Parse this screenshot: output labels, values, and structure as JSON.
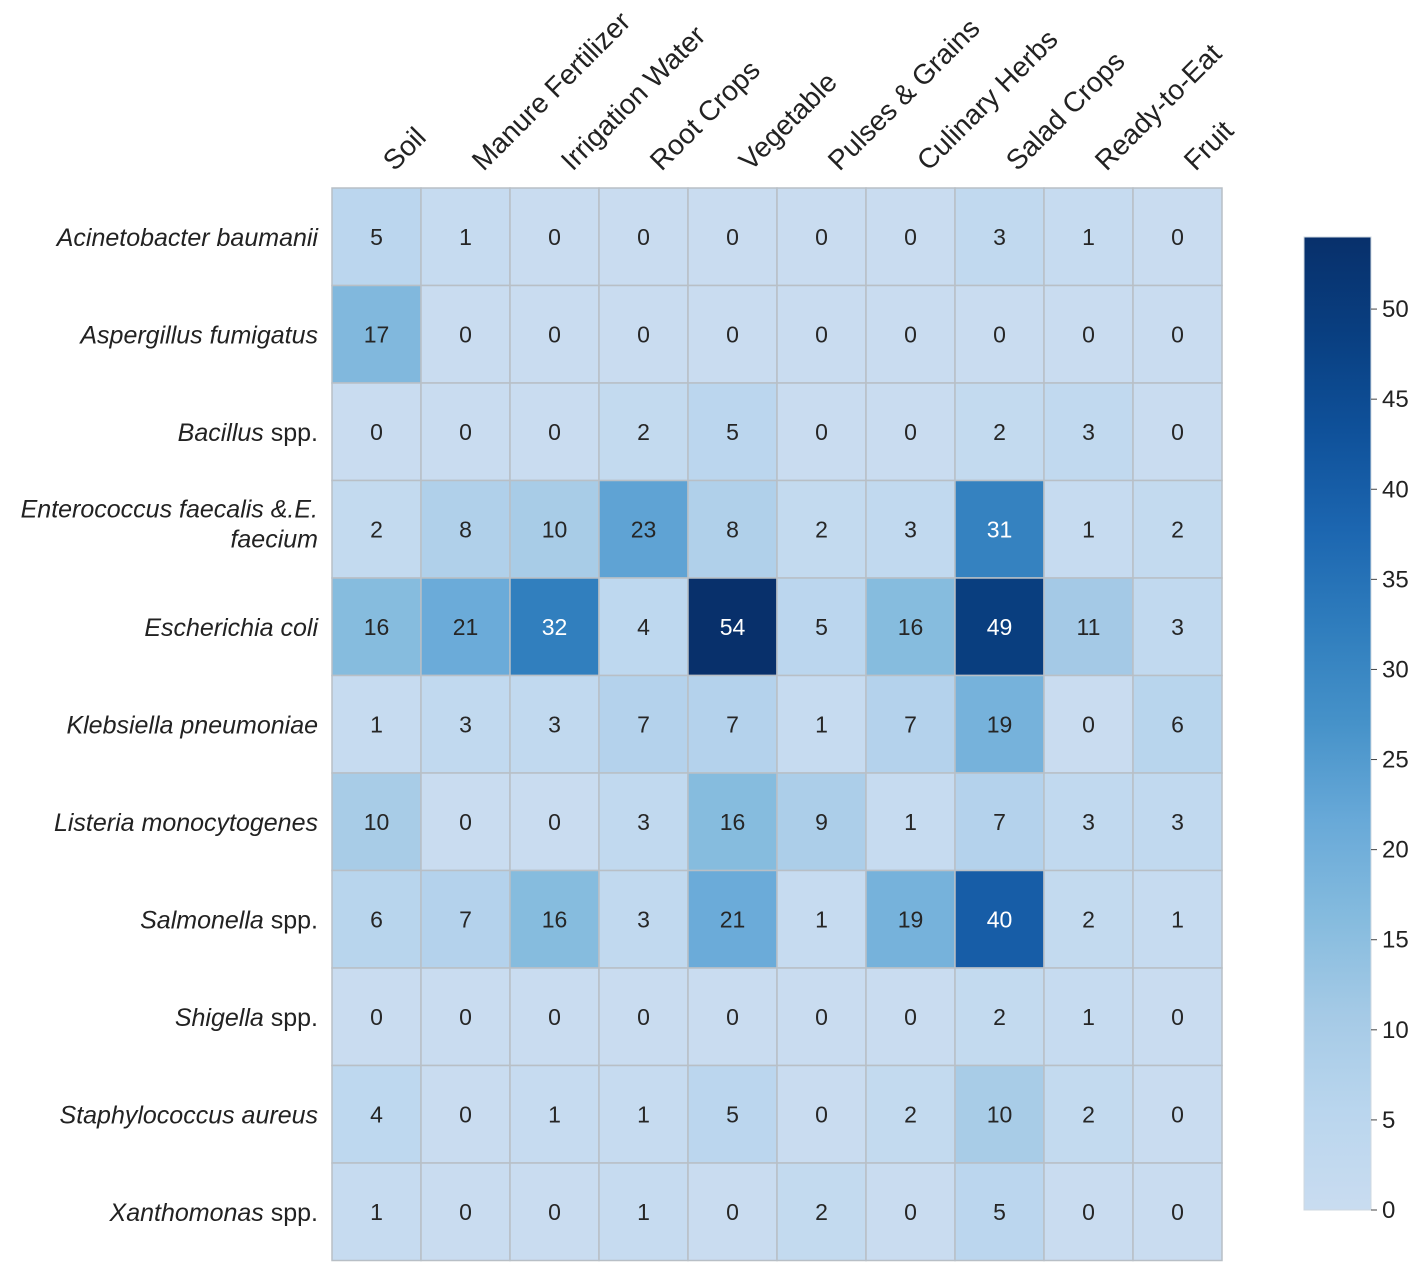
{
  "chart_data": {
    "type": "heatmap",
    "title": "",
    "xlabel": "",
    "ylabel": "",
    "columns": [
      "Soil",
      "Manure Fertilizer",
      "Irrigation Water",
      "Root Crops",
      "Vegetable",
      "Pulses & Grains",
      "Culinary Herbs",
      "Salad Crops",
      "Ready-to-Eat",
      "Fruit"
    ],
    "rows": [
      {
        "label": "Acinetobacter baumanii",
        "italic": "Acinetobacter baumanii",
        "suffix": ""
      },
      {
        "label": "Aspergillus fumigatus",
        "italic": "Aspergillus fumigatus",
        "suffix": ""
      },
      {
        "label": "Bacillus spp.",
        "italic": "Bacillus",
        "suffix": " spp."
      },
      {
        "label": "Enterococcus  faecalis &.E. faecium",
        "lines": [
          "Enterococcus  faecalis &.E.",
          "faecium"
        ]
      },
      {
        "label": "Escherichia coli",
        "italic": "Escherichia coli",
        "suffix": ""
      },
      {
        "label": "Klebsiella pneumoniae",
        "italic": "Klebsiella pneumoniae",
        "suffix": ""
      },
      {
        "label": "Listeria monocytogenes",
        "italic": "Listeria monocytogenes",
        "suffix": ""
      },
      {
        "label": "Salmonella spp.",
        "italic": "Salmonella",
        "suffix": " spp."
      },
      {
        "label": "Shigella spp.",
        "italic": "Shigella",
        "suffix": " spp."
      },
      {
        "label": "Staphylococcus aureus",
        "italic": "Staphylococcus aureus",
        "suffix": ""
      },
      {
        "label": "Xanthomonas spp.",
        "italic": "Xanthomonas",
        "suffix": " spp."
      }
    ],
    "values": [
      [
        5,
        1,
        0,
        0,
        0,
        0,
        0,
        3,
        1,
        0
      ],
      [
        17,
        0,
        0,
        0,
        0,
        0,
        0,
        0,
        0,
        0
      ],
      [
        0,
        0,
        0,
        2,
        5,
        0,
        0,
        2,
        3,
        0
      ],
      [
        2,
        8,
        10,
        23,
        8,
        2,
        3,
        31,
        1,
        2
      ],
      [
        16,
        21,
        32,
        4,
        54,
        5,
        16,
        49,
        11,
        3
      ],
      [
        1,
        3,
        3,
        7,
        7,
        1,
        7,
        19,
        0,
        6
      ],
      [
        10,
        0,
        0,
        3,
        16,
        9,
        1,
        7,
        3,
        3
      ],
      [
        6,
        7,
        16,
        3,
        21,
        1,
        19,
        40,
        2,
        1
      ],
      [
        0,
        0,
        0,
        0,
        0,
        0,
        0,
        2,
        1,
        0
      ],
      [
        4,
        0,
        1,
        1,
        5,
        0,
        2,
        10,
        2,
        0
      ],
      [
        1,
        0,
        0,
        1,
        0,
        2,
        0,
        5,
        0,
        0
      ]
    ],
    "colorbar": {
      "min": 0,
      "max": 54,
      "ticks": [
        0,
        5,
        10,
        15,
        20,
        25,
        30,
        35,
        40,
        45,
        50
      ],
      "colormap": "Blues",
      "low_color": "#c9dcf0",
      "high_color": "#08306b"
    }
  }
}
